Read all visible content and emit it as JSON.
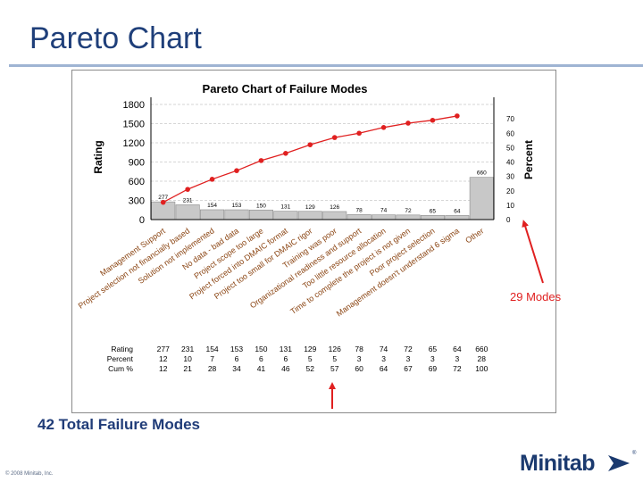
{
  "slide": {
    "title": "Pareto Chart",
    "under_caption": "42 Total Failure Modes",
    "footer": "© 2008 Minitab, Inc.",
    "brand": "Minitab",
    "brand_reg": "®",
    "callout_label": "29 Modes"
  },
  "colors": {
    "title": "#1f3f7a",
    "bar_fill": "#c8c8c8",
    "line": "#e02020",
    "callout": "#e02020"
  },
  "chart_data": {
    "type": "bar",
    "title": "Pareto Chart of Failure Modes",
    "ylabel": "Rating",
    "y2label": "Percent",
    "ylim": [
      0,
      1800
    ],
    "y2lim": [
      0,
      80
    ],
    "yticks": [
      0,
      300,
      600,
      900,
      1200,
      1500,
      1800
    ],
    "y2ticks": [
      0,
      10,
      20,
      30,
      40,
      50,
      60,
      70
    ],
    "grid": true,
    "categories": [
      "Management Support",
      "Project selection not financially based",
      "Solution not implemented",
      "No data - bad data",
      "Project scope too large",
      "Project forced into DMAIC format",
      "Project too small for DMAIC rigor",
      "Training was poor",
      "Organizational readiness and support",
      "Too little resource allocation",
      "Time to complete the project is not given",
      "Poor project selection",
      "Management doesn't understand 6 sigma",
      "Other"
    ],
    "values": [
      277,
      231,
      154,
      153,
      150,
      131,
      129,
      126,
      78,
      74,
      72,
      65,
      64,
      660
    ],
    "bar_labels": [
      "277",
      "231",
      "154",
      "153",
      "150",
      "131",
      "129",
      "126",
      "78",
      "74",
      "72",
      "65",
      "64",
      "660"
    ],
    "cumulative_percent": [
      12,
      21,
      28,
      34,
      41,
      46,
      52,
      57,
      60,
      64,
      67,
      69,
      72,
      100
    ],
    "table": {
      "row_labels": [
        "Rating",
        "Percent",
        "Cum %"
      ],
      "rating": [
        "277",
        "231",
        "154",
        "153",
        "150",
        "131",
        "129",
        "126",
        "78",
        "74",
        "72",
        "65",
        "64",
        "660"
      ],
      "percent": [
        "12",
        "10",
        "7",
        "6",
        "6",
        "6",
        "5",
        "5",
        "3",
        "3",
        "3",
        "3",
        "3",
        "28"
      ],
      "cum": [
        "12",
        "21",
        "28",
        "34",
        "41",
        "46",
        "52",
        "57",
        "60",
        "64",
        "67",
        "69",
        "72",
        "100"
      ]
    }
  }
}
